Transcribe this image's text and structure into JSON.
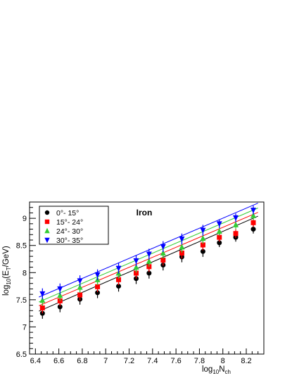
{
  "chart_data": {
    "type": "scatter",
    "title": "Iron",
    "xlabel_main": "log",
    "xlabel_sub": "10",
    "xlabel_tail": "N",
    "xlabel_tail_sub": "ch",
    "ylabel_main": "log",
    "ylabel_sub": "10",
    "ylabel_mid": "(E",
    "ylabel_mid_sub": "T",
    "ylabel_tail": "/GeV)",
    "xlim": [
      6.35,
      8.35
    ],
    "ylim": [
      6.5,
      9.3
    ],
    "xticks": [
      "6.4",
      "6.6",
      "6.8",
      "7",
      "7.2",
      "7.4",
      "7.6",
      "7.8",
      "8",
      "8.2"
    ],
    "xtick_values": [
      6.4,
      6.6,
      6.8,
      7.0,
      7.2,
      7.4,
      7.6,
      7.8,
      8.0,
      8.2
    ],
    "yticks": [
      "6.5",
      "7",
      "7.5",
      "8",
      "8.5",
      "9"
    ],
    "ytick_values": [
      6.5,
      7.0,
      7.5,
      8.0,
      8.5,
      9.0
    ],
    "legend_position": "top-left",
    "x": [
      6.46,
      6.61,
      6.78,
      6.93,
      7.11,
      7.26,
      7.37,
      7.49,
      7.65,
      7.83,
      7.97,
      8.11,
      8.26
    ],
    "series": [
      {
        "name": "0°- 15°",
        "color": "#000000",
        "marker": "circle",
        "values": [
          7.25,
          7.37,
          7.51,
          7.63,
          7.75,
          7.89,
          7.99,
          8.14,
          8.29,
          8.39,
          8.55,
          8.65,
          8.8
        ],
        "errors": [
          0.1,
          0.1,
          0.1,
          0.1,
          0.1,
          0.1,
          0.1,
          0.1,
          0.1,
          0.1,
          0.08,
          0.08,
          0.08
        ],
        "fit": [
          7.29,
          9.04
        ]
      },
      {
        "name": "15°- 24°",
        "color": "#ff0000",
        "marker": "square",
        "values": [
          7.35,
          7.48,
          7.59,
          7.74,
          7.87,
          7.99,
          8.11,
          8.23,
          8.36,
          8.51,
          8.65,
          8.72,
          8.92
        ],
        "errors": [
          0.1,
          0.1,
          0.1,
          0.1,
          0.1,
          0.1,
          0.1,
          0.1,
          0.1,
          0.1,
          0.08,
          0.08,
          0.08
        ],
        "fit": [
          7.39,
          9.11
        ]
      },
      {
        "name": "24°- 30°",
        "color": "#33cc33",
        "marker": "triangle-up",
        "values": [
          7.49,
          7.58,
          7.73,
          7.87,
          7.99,
          8.1,
          8.21,
          8.36,
          8.47,
          8.63,
          8.76,
          8.88,
          9.05
        ],
        "errors": [
          0.1,
          0.1,
          0.1,
          0.1,
          0.1,
          0.1,
          0.1,
          0.1,
          0.1,
          0.1,
          0.08,
          0.08,
          0.08
        ],
        "fit": [
          7.46,
          9.19
        ]
      },
      {
        "name": "30°- 35°",
        "color": "#0000ff",
        "marker": "triangle-down",
        "values": [
          7.61,
          7.7,
          7.85,
          7.96,
          8.08,
          8.22,
          8.34,
          8.48,
          8.62,
          8.78,
          8.9,
          9.01,
          9.15
        ],
        "errors": [
          0.1,
          0.1,
          0.1,
          0.1,
          0.1,
          0.1,
          0.1,
          0.1,
          0.1,
          0.1,
          0.08,
          0.08,
          0.08
        ],
        "fit": [
          7.55,
          9.28
        ]
      }
    ]
  }
}
